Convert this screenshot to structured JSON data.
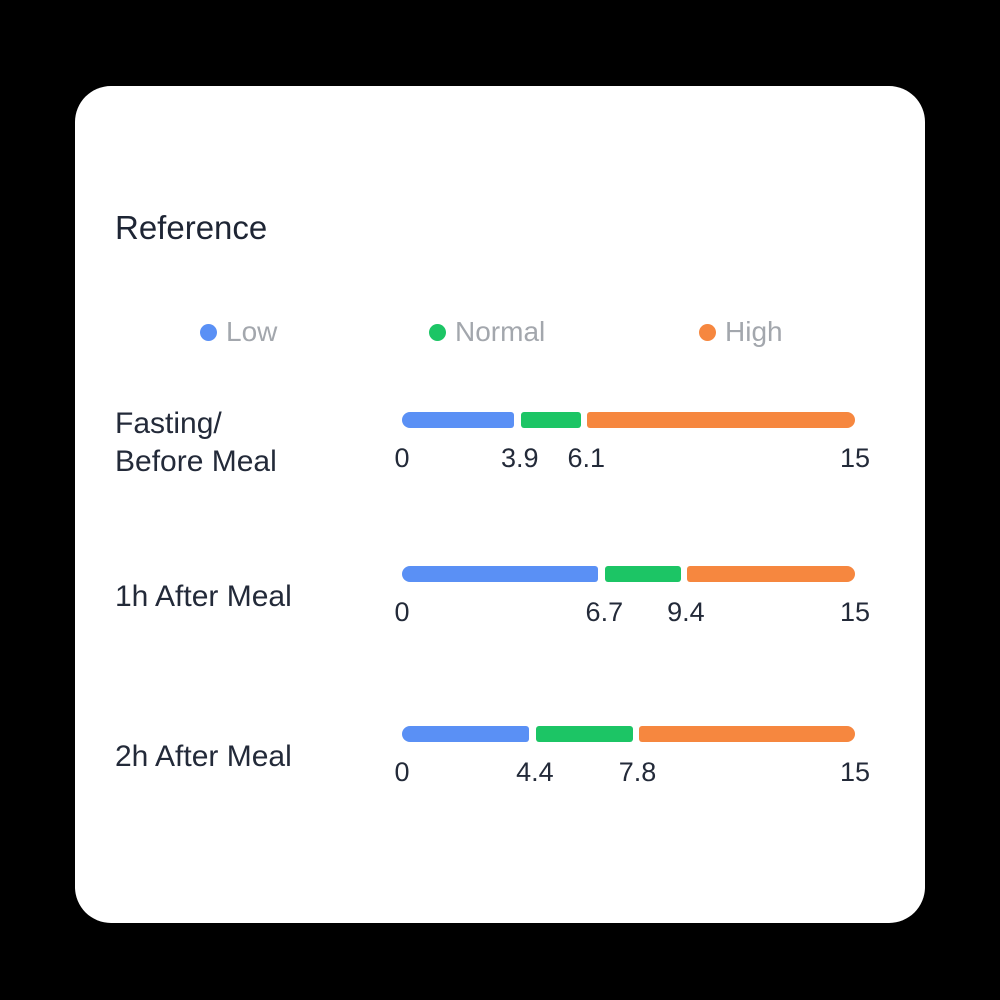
{
  "theme": {
    "background": "#000000",
    "card_bg": "#ffffff",
    "title_color": "#1e2534",
    "label_color": "#232a39",
    "legend_text_color": "#a3a7ad",
    "levels": {
      "low": "#5a90f5",
      "normal": "#1cc565",
      "high": "#f6873f"
    }
  },
  "chart_data": {
    "type": "bar",
    "title": "Reference",
    "max": 15,
    "legend_position": "top",
    "legend": [
      {
        "label": "Low",
        "level": "low",
        "color": "#5a90f5"
      },
      {
        "label": "Normal",
        "level": "normal",
        "color": "#1cc565"
      },
      {
        "label": "High",
        "level": "high",
        "color": "#f6873f"
      }
    ],
    "rows": [
      {
        "label": "Fasting/\nBefore Meal",
        "segments": [
          {
            "level": "low",
            "from": 0,
            "to": 3.9
          },
          {
            "level": "normal",
            "from": 3.9,
            "to": 6.1
          },
          {
            "level": "high",
            "from": 6.1,
            "to": 15
          }
        ],
        "ticks": [
          {
            "value": 0,
            "label": "0"
          },
          {
            "value": 3.9,
            "label": "3.9"
          },
          {
            "value": 6.1,
            "label": "6.1"
          },
          {
            "value": 15,
            "label": "15"
          }
        ]
      },
      {
        "label": "1h After Meal",
        "segments": [
          {
            "level": "low",
            "from": 0,
            "to": 6.7
          },
          {
            "level": "normal",
            "from": 6.7,
            "to": 9.4
          },
          {
            "level": "high",
            "from": 9.4,
            "to": 15
          }
        ],
        "ticks": [
          {
            "value": 0,
            "label": "0"
          },
          {
            "value": 6.7,
            "label": "6.7"
          },
          {
            "value": 9.4,
            "label": "9.4"
          },
          {
            "value": 15,
            "label": "15"
          }
        ]
      },
      {
        "label": "2h After Meal",
        "segments": [
          {
            "level": "low",
            "from": 0,
            "to": 4.4
          },
          {
            "level": "normal",
            "from": 4.4,
            "to": 7.8
          },
          {
            "level": "high",
            "from": 7.8,
            "to": 15
          }
        ],
        "ticks": [
          {
            "value": 0,
            "label": "0"
          },
          {
            "value": 4.4,
            "label": "4.4"
          },
          {
            "value": 7.8,
            "label": "7.8"
          },
          {
            "value": 15,
            "label": "15"
          }
        ]
      }
    ]
  }
}
